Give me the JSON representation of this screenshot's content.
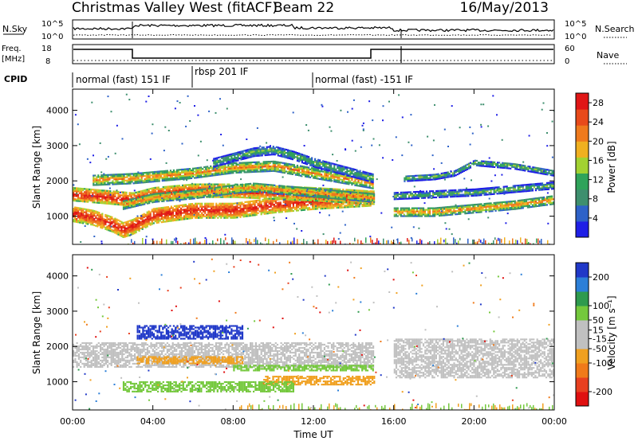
{
  "header": {
    "station": "Christmas Valley West (fitACF)",
    "beam": "Beam 22",
    "date": "16/May/2013"
  },
  "colors": {
    "power_scale": [
      "#1f1fe6",
      "#2e62c8",
      "#3e8f6e",
      "#2fa35a",
      "#a2d231",
      "#f0b020",
      "#ef7a1d",
      "#e84a1a",
      "#e01616"
    ],
    "velocity_scale": [
      "#2038c8",
      "#2c7fd8",
      "#2e9a4e",
      "#74c83c",
      "#c0c0c0",
      "#c0c0c0",
      "#f0a020",
      "#f07a1a",
      "#e84020",
      "#e01010"
    ],
    "gray": "#c0c0c0"
  },
  "sky_panel": {
    "left_label": "N.Sky",
    "right_label": "N.Search",
    "left_ticks": [
      "10^5",
      "10^0"
    ],
    "right_ticks": [
      "10^5",
      "10^0"
    ]
  },
  "freq_panel": {
    "left_label_1": "Freq.",
    "left_label_2": "[MHz]",
    "right_label": "Nave",
    "left_ticks": [
      "18",
      "8"
    ],
    "right_ticks": [
      "60",
      "0"
    ]
  },
  "cpid": {
    "label": "CPID",
    "segments": [
      {
        "text": "normal (fast) 151 IF",
        "start_hour": 0
      },
      {
        "text": "rbsp 201 IF",
        "start_hour": 6
      },
      {
        "text": "normal (fast) -151 IF",
        "start_hour": 12
      }
    ]
  },
  "chart_data": [
    {
      "type": "heatmap",
      "name": "power",
      "ylabel": "Slant Range [km]",
      "y_ticks": [
        1000,
        2000,
        3000,
        4000
      ],
      "ylim": [
        200,
        4600
      ],
      "xlim_hours": [
        0,
        24
      ],
      "colorbar": {
        "label": "Power [dB]",
        "ticks": [
          4,
          8,
          12,
          16,
          20,
          24,
          28
        ],
        "range": [
          0,
          30
        ]
      },
      "bands": [
        {
          "hours": [
            0,
            1,
            2,
            2.5,
            3,
            4,
            6,
            8,
            10,
            11,
            12,
            15
          ],
          "ranges_km": [
            1050,
            950,
            750,
            600,
            700,
            1000,
            1150,
            1150,
            1300,
            1350,
            1400,
            1500
          ],
          "width_km": 220,
          "level": "high"
        },
        {
          "hours": [
            0,
            1,
            2,
            3,
            4,
            6,
            8,
            10,
            12,
            15
          ],
          "ranges_km": [
            1600,
            1550,
            1500,
            1450,
            1600,
            1700,
            1700,
            1650,
            1600,
            1500
          ],
          "width_km": 180,
          "level": "high"
        },
        {
          "hours": [
            2.5,
            4,
            6,
            8,
            9,
            10,
            12,
            15
          ],
          "ranges_km": [
            1300,
            1500,
            1600,
            1750,
            1800,
            1750,
            1650,
            1500
          ],
          "width_km": 120,
          "level": "mid"
        },
        {
          "hours": [
            1,
            3,
            6,
            8,
            10,
            12,
            14,
            15
          ],
          "ranges_km": [
            2000,
            2050,
            2200,
            2350,
            2400,
            2200,
            2000,
            1900
          ],
          "width_km": 140,
          "level": "mid"
        },
        {
          "hours": [
            7,
            8,
            9,
            10,
            11,
            12,
            13,
            14,
            15
          ],
          "ranges_km": [
            2500,
            2650,
            2800,
            2850,
            2700,
            2500,
            2350,
            2200,
            2050
          ],
          "width_km": 120,
          "level": "low"
        },
        {
          "hours": [
            16,
            17,
            18,
            20,
            22,
            24
          ],
          "ranges_km": [
            1100,
            1100,
            1100,
            1200,
            1300,
            1450
          ],
          "width_km": 120,
          "level": "mid"
        },
        {
          "hours": [
            16,
            18,
            20,
            22,
            24
          ],
          "ranges_km": [
            1550,
            1600,
            1650,
            1750,
            1850
          ],
          "width_km": 90,
          "level": "low"
        },
        {
          "hours": [
            16.5,
            18,
            19,
            20,
            22,
            24
          ],
          "ranges_km": [
            2050,
            2100,
            2200,
            2500,
            2400,
            2200
          ],
          "width_km": 80,
          "level": "low"
        }
      ]
    },
    {
      "type": "heatmap",
      "name": "velocity",
      "ylabel": "Slant Range [km]",
      "xlabel": "Time UT",
      "x_ticks": [
        "00:00",
        "04:00",
        "08:00",
        "12:00",
        "16:00",
        "20:00",
        "00:00"
      ],
      "y_ticks": [
        1000,
        2000,
        3000,
        4000
      ],
      "ylim": [
        200,
        4600
      ],
      "xlim_hours": [
        0,
        24
      ],
      "colorbar": {
        "label": "Velocity [m s⁻¹]",
        "ticks": [
          200,
          100,
          50,
          15,
          -15,
          -50,
          -100,
          -200
        ],
        "range": [
          -250,
          250
        ]
      },
      "regions": [
        {
          "hours": [
            3.2,
            8.5
          ],
          "ranges_km": [
            2200,
            2600
          ],
          "velocity": 200
        },
        {
          "hours": [
            3.2,
            8.5
          ],
          "ranges_km": [
            1500,
            1700
          ],
          "velocity": -60
        },
        {
          "hours": [
            2.5,
            11
          ],
          "ranges_km": [
            700,
            1000
          ],
          "velocity": 60
        },
        {
          "hours": [
            8,
            15
          ],
          "ranges_km": [
            1300,
            1450
          ],
          "velocity": 60
        },
        {
          "hours": [
            9.5,
            15
          ],
          "ranges_km": [
            900,
            1150
          ],
          "velocity": -60
        },
        {
          "hours": [
            0,
            15
          ],
          "ranges_km": [
            1400,
            2100
          ],
          "velocity": 0
        },
        {
          "hours": [
            16,
            24
          ],
          "ranges_km": [
            1100,
            2200
          ],
          "velocity": 0
        }
      ]
    }
  ]
}
